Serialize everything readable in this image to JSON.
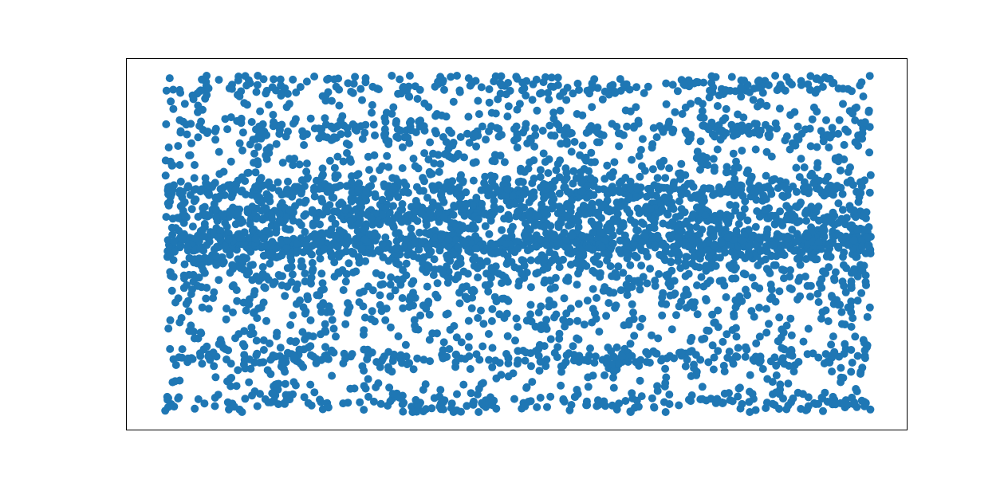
{
  "chart_data": {
    "type": "scatter",
    "title": "",
    "xlabel": "",
    "ylabel": "",
    "xlim": [
      0,
      1
    ],
    "ylim": [
      0,
      1
    ],
    "grid": false,
    "axes_visible": false,
    "marker": "circle",
    "color": "#1f77b4",
    "point_count_approx": 4200,
    "density_bands": [
      {
        "y_center": 0.03,
        "half_width": 0.016,
        "weight": 150
      },
      {
        "y_center": 0.16,
        "half_width": 0.014,
        "weight": 170
      },
      {
        "y_center": 0.5,
        "half_width": 0.02,
        "weight": 520
      },
      {
        "y_center": 0.59,
        "half_width": 0.014,
        "weight": 260
      },
      {
        "y_center": 0.66,
        "half_width": 0.014,
        "weight": 260
      },
      {
        "y_center": 0.84,
        "half_width": 0.016,
        "weight": 170
      },
      {
        "y_center": 0.97,
        "half_width": 0.016,
        "weight": 150
      }
    ],
    "density_profile": [
      {
        "y": 0.0,
        "density": 0.28
      },
      {
        "y": 0.1,
        "density": 0.3
      },
      {
        "y": 0.2,
        "density": 0.38
      },
      {
        "y": 0.3,
        "density": 0.5
      },
      {
        "y": 0.4,
        "density": 0.7
      },
      {
        "y": 0.5,
        "density": 1.0
      },
      {
        "y": 0.6,
        "density": 0.7
      },
      {
        "y": 0.7,
        "density": 0.5
      },
      {
        "y": 0.8,
        "density": 0.38
      },
      {
        "y": 0.9,
        "density": 0.3
      },
      {
        "y": 1.0,
        "density": 0.28
      }
    ]
  }
}
